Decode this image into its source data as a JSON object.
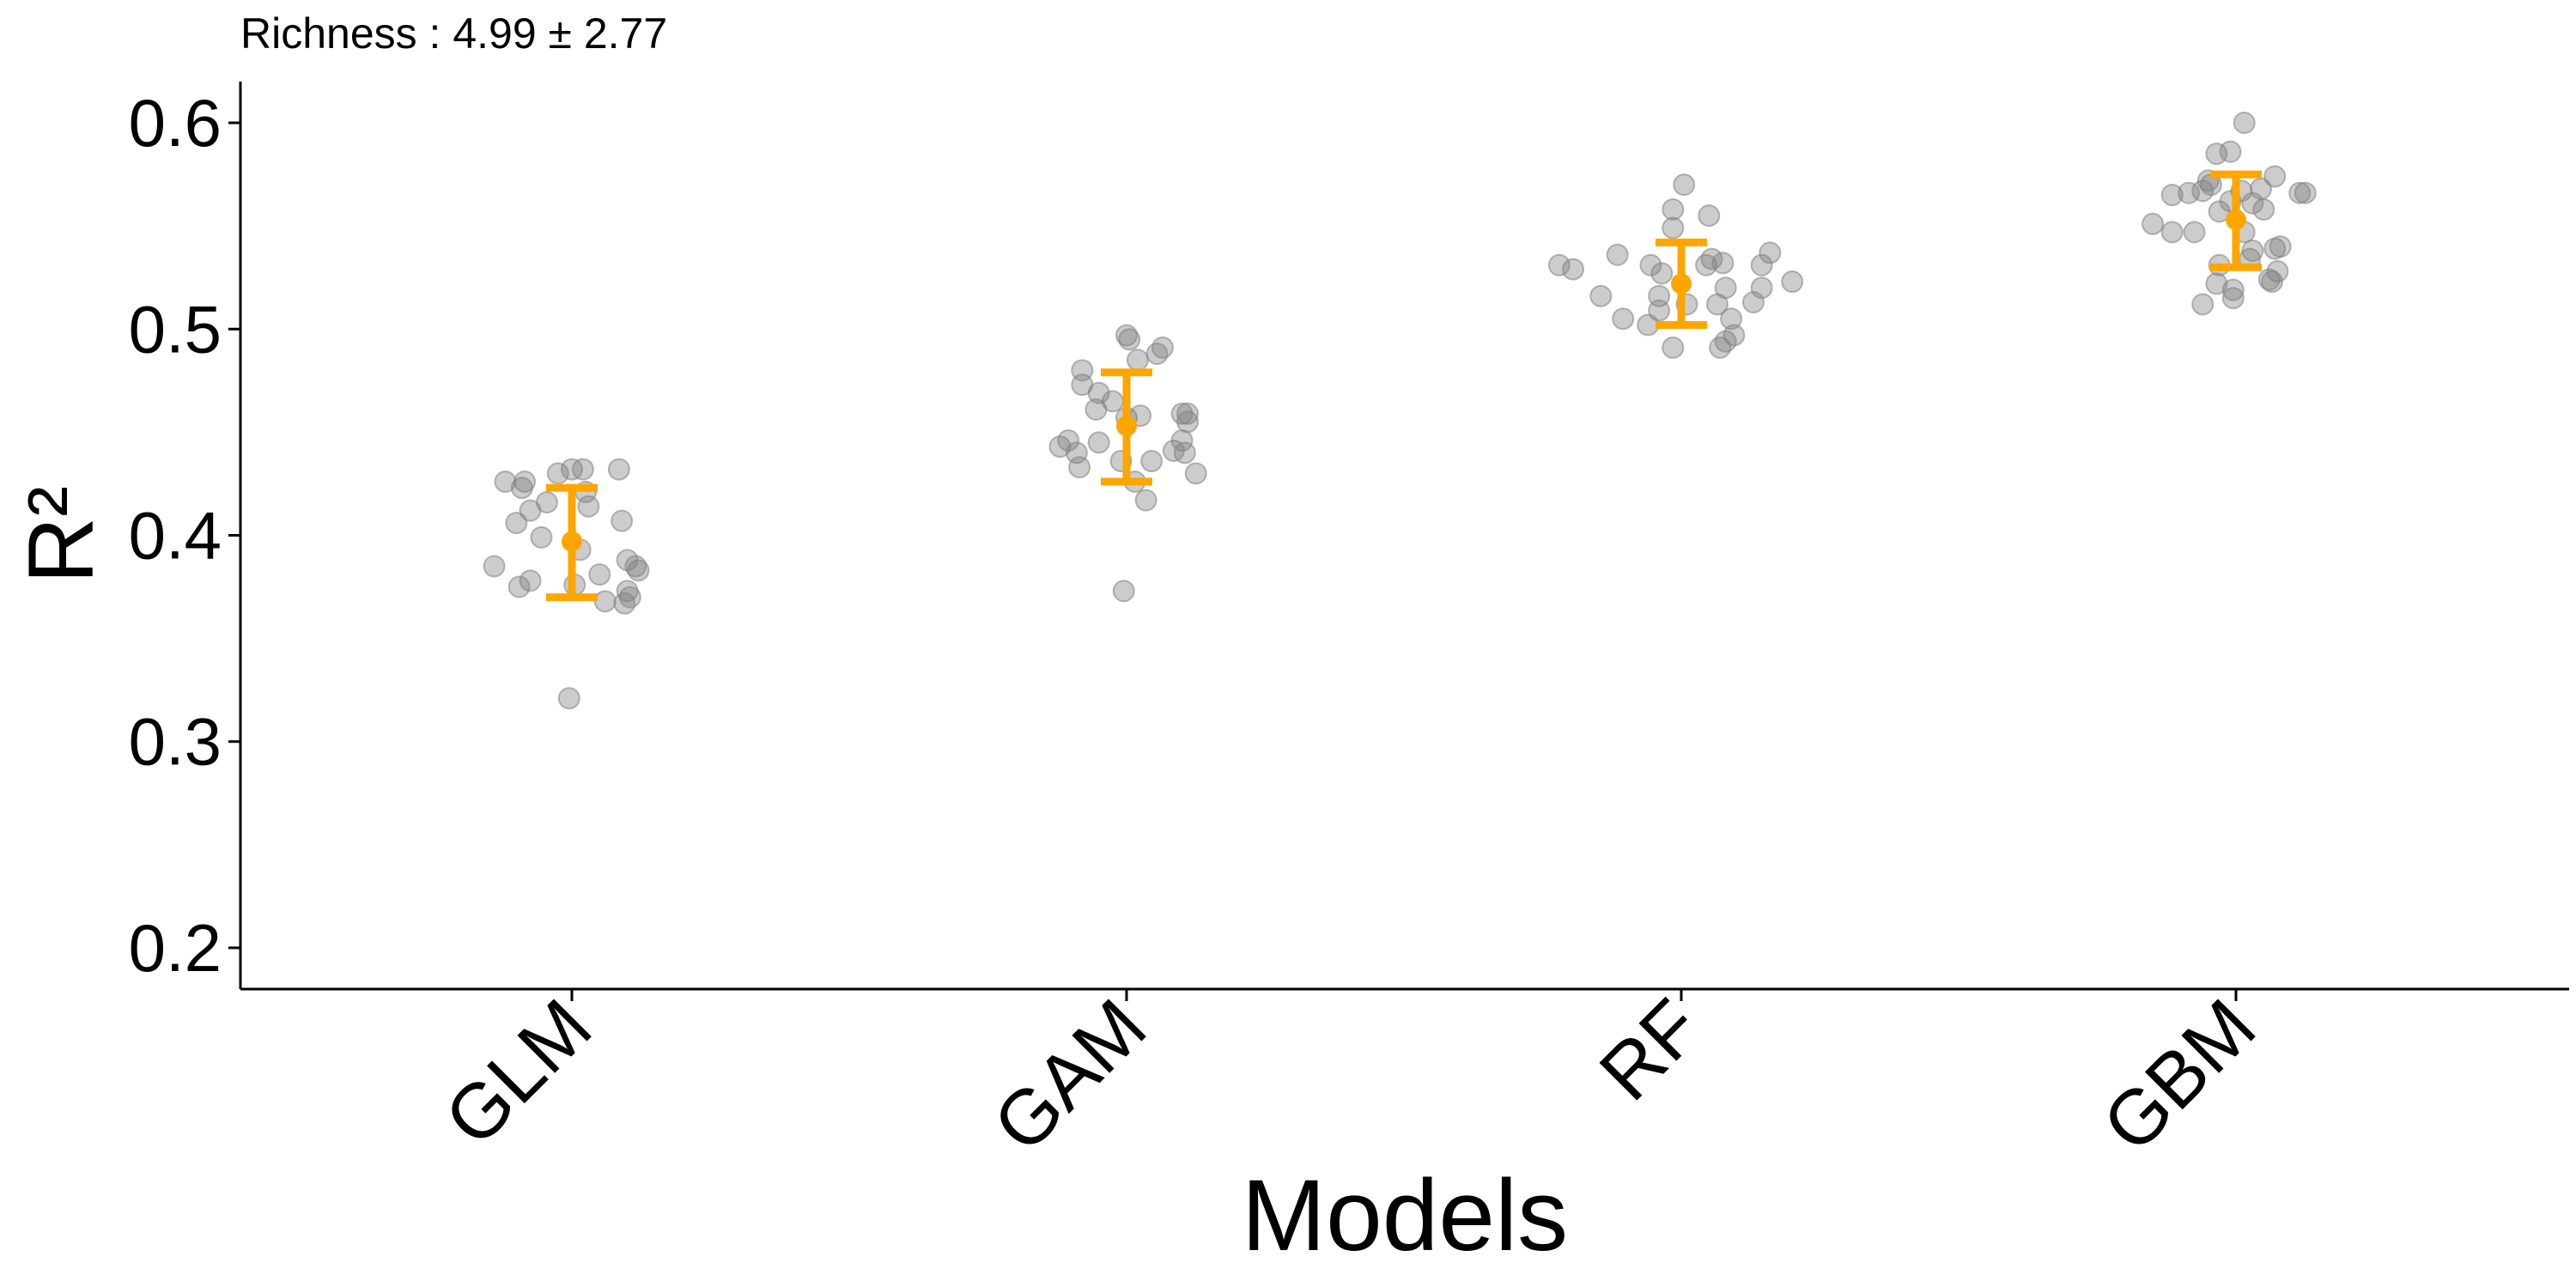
{
  "chart_data": {
    "type": "scatter",
    "title": "Richness : 4.99 ± 2.77",
    "xlabel": "Models",
    "ylabel": "R²",
    "categories": [
      "GLM",
      "GAM",
      "RF",
      "GBM"
    ],
    "ylim": [
      0.18,
      0.62
    ],
    "yticks": [
      0.2,
      0.3,
      0.4,
      0.5,
      0.6
    ],
    "ytick_labels": [
      "0.2",
      "0.3",
      "0.4",
      "0.5",
      "0.6"
    ],
    "grid": false,
    "colors": {
      "points": "#808080",
      "summary": "#FFA500"
    },
    "series": [
      {
        "category": "GLM",
        "mean": 0.397,
        "lower": 0.37,
        "upper": 0.423,
        "points": [
          {
            "x": -0.28,
            "y": 0.385
          },
          {
            "x": -0.24,
            "y": 0.426
          },
          {
            "x": -0.2,
            "y": 0.406
          },
          {
            "x": -0.19,
            "y": 0.375
          },
          {
            "x": -0.18,
            "y": 0.423
          },
          {
            "x": -0.17,
            "y": 0.426
          },
          {
            "x": -0.15,
            "y": 0.378
          },
          {
            "x": -0.15,
            "y": 0.412
          },
          {
            "x": -0.11,
            "y": 0.399
          },
          {
            "x": -0.09,
            "y": 0.416
          },
          {
            "x": -0.05,
            "y": 0.43
          },
          {
            "x": -0.01,
            "y": 0.321
          },
          {
            "x": 0.0,
            "y": 0.432
          },
          {
            "x": 0.01,
            "y": 0.376
          },
          {
            "x": 0.03,
            "y": 0.393
          },
          {
            "x": 0.04,
            "y": 0.432
          },
          {
            "x": 0.05,
            "y": 0.421
          },
          {
            "x": 0.06,
            "y": 0.414
          },
          {
            "x": 0.1,
            "y": 0.381
          },
          {
            "x": 0.12,
            "y": 0.368
          },
          {
            "x": 0.17,
            "y": 0.432
          },
          {
            "x": 0.18,
            "y": 0.407
          },
          {
            "x": 0.19,
            "y": 0.367
          },
          {
            "x": 0.2,
            "y": 0.388
          },
          {
            "x": 0.2,
            "y": 0.373
          },
          {
            "x": 0.21,
            "y": 0.37
          },
          {
            "x": 0.23,
            "y": 0.385
          },
          {
            "x": 0.24,
            "y": 0.383
          }
        ]
      },
      {
        "category": "GAM",
        "mean": 0.453,
        "lower": 0.426,
        "upper": 0.479,
        "points": [
          {
            "x": -0.24,
            "y": 0.443
          },
          {
            "x": -0.21,
            "y": 0.446
          },
          {
            "x": -0.18,
            "y": 0.44
          },
          {
            "x": -0.16,
            "y": 0.48
          },
          {
            "x": -0.16,
            "y": 0.473
          },
          {
            "x": -0.17,
            "y": 0.433
          },
          {
            "x": -0.11,
            "y": 0.461
          },
          {
            "x": -0.1,
            "y": 0.469
          },
          {
            "x": -0.1,
            "y": 0.445
          },
          {
            "x": -0.05,
            "y": 0.465
          },
          {
            "x": -0.02,
            "y": 0.436
          },
          {
            "x": -0.01,
            "y": 0.373
          },
          {
            "x": 0.0,
            "y": 0.497
          },
          {
            "x": 0.01,
            "y": 0.495
          },
          {
            "x": 0.0,
            "y": 0.457
          },
          {
            "x": 0.03,
            "y": 0.426
          },
          {
            "x": 0.04,
            "y": 0.485
          },
          {
            "x": 0.05,
            "y": 0.458
          },
          {
            "x": 0.07,
            "y": 0.417
          },
          {
            "x": 0.09,
            "y": 0.436
          },
          {
            "x": 0.11,
            "y": 0.488
          },
          {
            "x": 0.13,
            "y": 0.491
          },
          {
            "x": 0.17,
            "y": 0.441
          },
          {
            "x": 0.2,
            "y": 0.459
          },
          {
            "x": 0.2,
            "y": 0.446
          },
          {
            "x": 0.21,
            "y": 0.44
          },
          {
            "x": 0.22,
            "y": 0.459
          },
          {
            "x": 0.22,
            "y": 0.455
          },
          {
            "x": 0.25,
            "y": 0.43
          }
        ]
      },
      {
        "category": "RF",
        "mean": 0.522,
        "lower": 0.502,
        "upper": 0.542,
        "points": [
          {
            "x": -0.44,
            "y": 0.531
          },
          {
            "x": -0.39,
            "y": 0.529
          },
          {
            "x": -0.29,
            "y": 0.516
          },
          {
            "x": -0.23,
            "y": 0.536
          },
          {
            "x": -0.21,
            "y": 0.505
          },
          {
            "x": -0.11,
            "y": 0.531
          },
          {
            "x": -0.12,
            "y": 0.502
          },
          {
            "x": -0.08,
            "y": 0.509
          },
          {
            "x": -0.08,
            "y": 0.516
          },
          {
            "x": -0.07,
            "y": 0.527
          },
          {
            "x": -0.03,
            "y": 0.549
          },
          {
            "x": -0.03,
            "y": 0.558
          },
          {
            "x": -0.03,
            "y": 0.491
          },
          {
            "x": 0.01,
            "y": 0.57
          },
          {
            "x": 0.02,
            "y": 0.512
          },
          {
            "x": 0.09,
            "y": 0.531
          },
          {
            "x": 0.1,
            "y": 0.555
          },
          {
            "x": 0.11,
            "y": 0.534
          },
          {
            "x": 0.13,
            "y": 0.512
          },
          {
            "x": 0.14,
            "y": 0.491
          },
          {
            "x": 0.15,
            "y": 0.532
          },
          {
            "x": 0.16,
            "y": 0.52
          },
          {
            "x": 0.16,
            "y": 0.494
          },
          {
            "x": 0.18,
            "y": 0.505
          },
          {
            "x": 0.19,
            "y": 0.497
          },
          {
            "x": 0.26,
            "y": 0.513
          },
          {
            "x": 0.29,
            "y": 0.531
          },
          {
            "x": 0.29,
            "y": 0.52
          },
          {
            "x": 0.32,
            "y": 0.537
          },
          {
            "x": 0.4,
            "y": 0.523
          }
        ]
      },
      {
        "category": "GBM",
        "mean": 0.553,
        "lower": 0.53,
        "upper": 0.575,
        "points": [
          {
            "x": -0.3,
            "y": 0.551
          },
          {
            "x": -0.23,
            "y": 0.565
          },
          {
            "x": -0.23,
            "y": 0.547
          },
          {
            "x": -0.17,
            "y": 0.566
          },
          {
            "x": -0.15,
            "y": 0.547
          },
          {
            "x": -0.12,
            "y": 0.567
          },
          {
            "x": -0.12,
            "y": 0.512
          },
          {
            "x": -0.1,
            "y": 0.572
          },
          {
            "x": -0.09,
            "y": 0.57
          },
          {
            "x": -0.07,
            "y": 0.585
          },
          {
            "x": -0.06,
            "y": 0.557
          },
          {
            "x": -0.06,
            "y": 0.531
          },
          {
            "x": -0.07,
            "y": 0.522
          },
          {
            "x": -0.02,
            "y": 0.586
          },
          {
            "x": -0.02,
            "y": 0.562
          },
          {
            "x": -0.01,
            "y": 0.519
          },
          {
            "x": -0.01,
            "y": 0.515
          },
          {
            "x": 0.02,
            "y": 0.567
          },
          {
            "x": 0.03,
            "y": 0.6
          },
          {
            "x": 0.03,
            "y": 0.547
          },
          {
            "x": 0.05,
            "y": 0.534
          },
          {
            "x": 0.06,
            "y": 0.561
          },
          {
            "x": 0.06,
            "y": 0.538
          },
          {
            "x": 0.09,
            "y": 0.568
          },
          {
            "x": 0.1,
            "y": 0.558
          },
          {
            "x": 0.12,
            "y": 0.524
          },
          {
            "x": 0.14,
            "y": 0.574
          },
          {
            "x": 0.13,
            "y": 0.523
          },
          {
            "x": 0.14,
            "y": 0.539
          },
          {
            "x": 0.15,
            "y": 0.528
          },
          {
            "x": 0.16,
            "y": 0.54
          },
          {
            "x": 0.23,
            "y": 0.566
          },
          {
            "x": 0.25,
            "y": 0.566
          }
        ]
      }
    ]
  }
}
